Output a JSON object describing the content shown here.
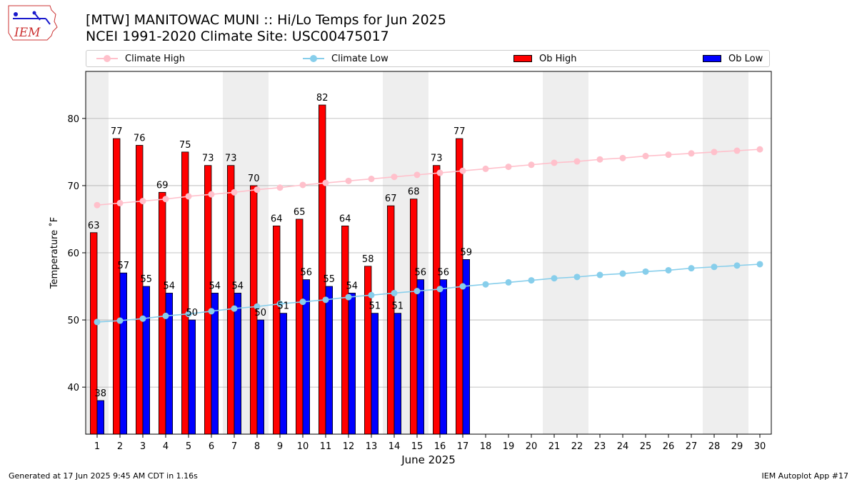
{
  "header": {
    "title_line1": "[MTW] MANITOWAC MUNI :: Hi/Lo Temps for Jun 2025",
    "title_line2": "NCEI 1991-2020 Climate Site: USC00475017",
    "logo_text": "IEM"
  },
  "legend": {
    "placement": "top",
    "items": [
      {
        "label": "Climate High",
        "kind": "line",
        "color": "#ffc0cb"
      },
      {
        "label": "Climate Low",
        "kind": "line",
        "color": "#87ceeb"
      },
      {
        "label": "Ob High",
        "kind": "bar",
        "color": "#ff0000"
      },
      {
        "label": "Ob Low",
        "kind": "bar",
        "color": "#0000ff"
      }
    ]
  },
  "chart_data": {
    "type": "bar",
    "xlabel": "June 2025",
    "ylabel": "Temperature ˚F",
    "ylim": [
      33,
      87
    ],
    "xlim": [
      0.5,
      30.5
    ],
    "yticks": [
      40,
      50,
      60,
      70,
      80
    ],
    "grid": "horizontal",
    "days": [
      1,
      2,
      3,
      4,
      5,
      6,
      7,
      8,
      9,
      10,
      11,
      12,
      13,
      14,
      15,
      16,
      17,
      18,
      19,
      20,
      21,
      22,
      23,
      24,
      25,
      26,
      27,
      28,
      29,
      30
    ],
    "weekend_days": [
      1,
      7,
      8,
      14,
      15,
      21,
      22,
      28,
      29
    ],
    "ob_high": [
      63,
      77,
      76,
      69,
      75,
      73,
      73,
      70,
      64,
      65,
      82,
      64,
      58,
      67,
      68,
      73,
      77
    ],
    "ob_low": [
      38,
      57,
      55,
      54,
      50,
      54,
      54,
      50,
      51,
      56,
      55,
      54,
      51,
      51,
      56,
      56,
      59
    ],
    "climate_high": [
      67.1,
      67.4,
      67.7,
      68.0,
      68.4,
      68.7,
      69.0,
      69.4,
      69.7,
      70.1,
      70.4,
      70.7,
      71.0,
      71.3,
      71.6,
      71.9,
      72.2,
      72.5,
      72.8,
      73.1,
      73.4,
      73.6,
      73.9,
      74.1,
      74.4,
      74.6,
      74.8,
      75.0,
      75.2,
      75.4
    ],
    "climate_low": [
      49.7,
      49.9,
      50.2,
      50.6,
      50.9,
      51.3,
      51.7,
      52.0,
      52.4,
      52.7,
      53.0,
      53.4,
      53.7,
      54.0,
      54.3,
      54.6,
      55.0,
      55.3,
      55.6,
      55.9,
      56.2,
      56.4,
      56.7,
      56.9,
      57.2,
      57.4,
      57.7,
      57.9,
      58.1,
      58.3
    ],
    "colors": {
      "ob_high": "#ff0000",
      "ob_low": "#0000ff",
      "climate_high": "#ffc0cb",
      "climate_low": "#87ceeb",
      "weekend_band": "#eeeeee",
      "grid": "#b0b0b0"
    }
  },
  "footer": {
    "left": "Generated at 17 Jun 2025 9:45 AM CDT in 1.16s",
    "right": "IEM Autoplot App #17"
  }
}
